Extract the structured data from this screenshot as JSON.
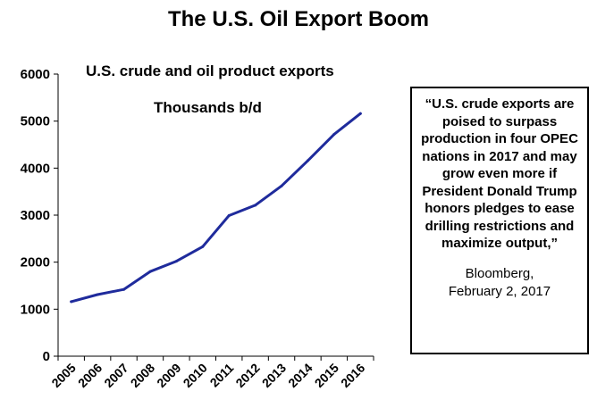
{
  "chart_data": {
    "type": "line",
    "title": "The U.S. Oil Export Boom",
    "subtitle": "U.S. crude and oil product exports",
    "ylabel": "Thousands b/d",
    "xlabel": "",
    "categories": [
      "2005",
      "2006",
      "2007",
      "2008",
      "2009",
      "2010",
      "2011",
      "2012",
      "2013",
      "2014",
      "2015",
      "2016"
    ],
    "series": [
      {
        "name": "",
        "values": [
          1160,
          1310,
          1420,
          1800,
          2020,
          2330,
          2990,
          3210,
          3620,
          4160,
          4720,
          5160
        ]
      }
    ],
    "ylim": [
      0,
      6000
    ],
    "yticks": [
      0,
      1000,
      2000,
      3000,
      4000,
      5000,
      6000
    ],
    "grid": false,
    "line_color": "#1f2b9c"
  },
  "quote": {
    "text": "“U.S. crude exports are poised to surpass production in four OPEC nations in 2017 and may grow even more if President Donald Trump honors pledges to ease drilling restrictions and maximize output,”",
    "source_line1": "Bloomberg,",
    "source_line2": "February 2, 2017"
  }
}
